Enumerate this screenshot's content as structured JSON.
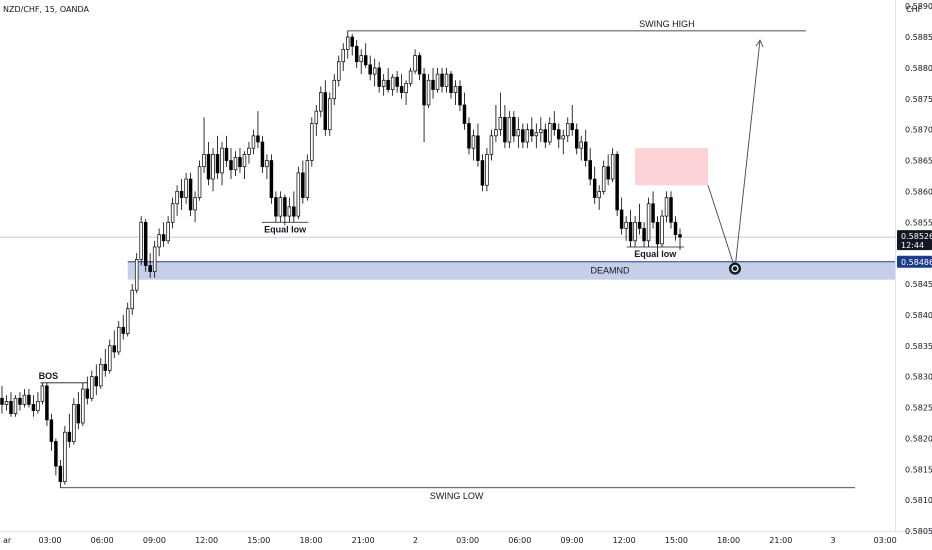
{
  "chart_data": {
    "type": "candlestick",
    "title": "NZD/CHF, 15, OANDA",
    "currency": "CHF",
    "ylim": [
      0.5805,
      0.5891
    ],
    "y_ticks": [
      "0.58900",
      "0.58850",
      "0.58800",
      "0.58750",
      "0.58700",
      "0.58650",
      "0.58600",
      "0.58550",
      "0.58450",
      "0.58400",
      "0.58350",
      "0.58300",
      "0.58250",
      "0.58200",
      "0.58150",
      "0.58100",
      "0.58050"
    ],
    "x_ticks": [
      "ar",
      "03:00",
      "06:00",
      "09:00",
      "12:00",
      "15:00",
      "18:00",
      "21:00",
      "2",
      "03:00",
      "06:00",
      "09:00",
      "12:00",
      "15:00",
      "18:00",
      "21:00",
      "3",
      "03:00"
    ],
    "last_price": "0.58526",
    "countdown": "12:44",
    "demand_level": "0.58486",
    "annotations": {
      "swing_high": "SWING HIGH",
      "swing_low": "SWING LOW",
      "bos": "BOS",
      "equal_low_1": "Equal low",
      "equal_low_2": "Equal low",
      "demand": "DEAMND"
    },
    "colors": {
      "bull": "#ffffff",
      "bear": "#000000",
      "outline": "#000000",
      "demand_zone": "#c5cfe8",
      "supply_zone": "#fcd2d6",
      "demand_line": "#1e3a8a",
      "price_label_bg": "#000000",
      "demand_label_bg": "#1e3a8a"
    },
    "candles": [
      [
        0.58265,
        0.58285,
        0.5824,
        0.58255
      ],
      [
        0.58255,
        0.5827,
        0.58245,
        0.5826
      ],
      [
        0.5826,
        0.58275,
        0.58235,
        0.5824
      ],
      [
        0.5824,
        0.5827,
        0.58235,
        0.58265
      ],
      [
        0.58265,
        0.58275,
        0.58245,
        0.58255
      ],
      [
        0.58255,
        0.5828,
        0.5825,
        0.5827
      ],
      [
        0.5827,
        0.5828,
        0.5825,
        0.58255
      ],
      [
        0.58255,
        0.5827,
        0.58235,
        0.58245
      ],
      [
        0.58245,
        0.58275,
        0.5824,
        0.5826
      ],
      [
        0.5826,
        0.5829,
        0.58255,
        0.58285
      ],
      [
        0.58285,
        0.5829,
        0.5822,
        0.5823
      ],
      [
        0.5823,
        0.5824,
        0.5818,
        0.58195
      ],
      [
        0.58195,
        0.582,
        0.5814,
        0.58155
      ],
      [
        0.58155,
        0.58165,
        0.5812,
        0.5813
      ],
      [
        0.5813,
        0.5822,
        0.58125,
        0.5821
      ],
      [
        0.5821,
        0.5824,
        0.58185,
        0.58195
      ],
      [
        0.58195,
        0.58265,
        0.5819,
        0.58255
      ],
      [
        0.58255,
        0.58275,
        0.58215,
        0.58225
      ],
      [
        0.58225,
        0.5829,
        0.5822,
        0.5828
      ],
      [
        0.5828,
        0.583,
        0.58255,
        0.58265
      ],
      [
        0.58265,
        0.5831,
        0.5826,
        0.583
      ],
      [
        0.583,
        0.5832,
        0.5827,
        0.58285
      ],
      [
        0.58285,
        0.5833,
        0.5828,
        0.5832
      ],
      [
        0.5832,
        0.58345,
        0.583,
        0.5831
      ],
      [
        0.5831,
        0.5836,
        0.58305,
        0.5835
      ],
      [
        0.5835,
        0.58375,
        0.5833,
        0.5834
      ],
      [
        0.5834,
        0.5839,
        0.58335,
        0.5838
      ],
      [
        0.5838,
        0.584,
        0.5836,
        0.5837
      ],
      [
        0.5837,
        0.5842,
        0.58365,
        0.5841
      ],
      [
        0.5841,
        0.5845,
        0.584,
        0.5844
      ],
      [
        0.5844,
        0.585,
        0.58435,
        0.5849
      ],
      [
        0.5849,
        0.5856,
        0.5848,
        0.5855
      ],
      [
        0.5855,
        0.58555,
        0.5847,
        0.5848
      ],
      [
        0.5848,
        0.585,
        0.5846,
        0.5847
      ],
      [
        0.5847,
        0.5852,
        0.5846,
        0.5851
      ],
      [
        0.5851,
        0.5854,
        0.58495,
        0.5853
      ],
      [
        0.5853,
        0.5855,
        0.5851,
        0.5852
      ],
      [
        0.5852,
        0.5856,
        0.58515,
        0.5855
      ],
      [
        0.5855,
        0.5859,
        0.5854,
        0.5858
      ],
      [
        0.5858,
        0.5861,
        0.5856,
        0.586
      ],
      [
        0.586,
        0.5862,
        0.5857,
        0.5859
      ],
      [
        0.5859,
        0.5863,
        0.5858,
        0.5862
      ],
      [
        0.5862,
        0.5863,
        0.5856,
        0.5857
      ],
      [
        0.5857,
        0.586,
        0.5855,
        0.5859
      ],
      [
        0.5859,
        0.5865,
        0.58585,
        0.5864
      ],
      [
        0.5864,
        0.5872,
        0.5863,
        0.5866
      ],
      [
        0.5866,
        0.5868,
        0.5861,
        0.5862
      ],
      [
        0.5862,
        0.5867,
        0.586,
        0.5866
      ],
      [
        0.5866,
        0.5869,
        0.5862,
        0.5863
      ],
      [
        0.5863,
        0.5868,
        0.5861,
        0.5867
      ],
      [
        0.5867,
        0.5869,
        0.5864,
        0.5865
      ],
      [
        0.5865,
        0.5867,
        0.5862,
        0.58635
      ],
      [
        0.58635,
        0.58665,
        0.58625,
        0.58655
      ],
      [
        0.58655,
        0.5867,
        0.5863,
        0.5864
      ],
      [
        0.5864,
        0.58665,
        0.5862,
        0.5866
      ],
      [
        0.5866,
        0.5868,
        0.58645,
        0.5867
      ],
      [
        0.5867,
        0.587,
        0.5866,
        0.5869
      ],
      [
        0.5869,
        0.5873,
        0.5867,
        0.5868
      ],
      [
        0.5868,
        0.5869,
        0.5863,
        0.5864
      ],
      [
        0.5864,
        0.5866,
        0.5862,
        0.5865
      ],
      [
        0.5865,
        0.5866,
        0.5858,
        0.5859
      ],
      [
        0.5859,
        0.586,
        0.5855,
        0.5856
      ],
      [
        0.5856,
        0.586,
        0.5855,
        0.5859
      ],
      [
        0.5859,
        0.58595,
        0.58545,
        0.5856
      ],
      [
        0.5856,
        0.5859,
        0.5855,
        0.58575
      ],
      [
        0.58575,
        0.586,
        0.5855,
        0.5856
      ],
      [
        0.5856,
        0.5864,
        0.58555,
        0.5863
      ],
      [
        0.5863,
        0.5865,
        0.5858,
        0.5859
      ],
      [
        0.5859,
        0.5866,
        0.58585,
        0.5865
      ],
      [
        0.5865,
        0.5872,
        0.5864,
        0.5871
      ],
      [
        0.5871,
        0.5874,
        0.5869,
        0.5873
      ],
      [
        0.5873,
        0.5877,
        0.5872,
        0.5876
      ],
      [
        0.5876,
        0.5878,
        0.5869,
        0.587
      ],
      [
        0.587,
        0.5876,
        0.5869,
        0.5875
      ],
      [
        0.5875,
        0.5879,
        0.5874,
        0.5878
      ],
      [
        0.5878,
        0.5882,
        0.5877,
        0.5881
      ],
      [
        0.5881,
        0.5884,
        0.58795,
        0.5883
      ],
      [
        0.5883,
        0.5886,
        0.58815,
        0.5885
      ],
      [
        0.5885,
        0.58855,
        0.5882,
        0.58835
      ],
      [
        0.58835,
        0.58845,
        0.588,
        0.5881
      ],
      [
        0.5881,
        0.5883,
        0.5879,
        0.5882
      ],
      [
        0.5882,
        0.5884,
        0.588,
        0.58805
      ],
      [
        0.58805,
        0.5882,
        0.5878,
        0.5879
      ],
      [
        0.5879,
        0.58815,
        0.5877,
        0.588
      ],
      [
        0.588,
        0.5881,
        0.5876,
        0.5877
      ],
      [
        0.5877,
        0.5879,
        0.58755,
        0.5878
      ],
      [
        0.5878,
        0.588,
        0.5876,
        0.58765
      ],
      [
        0.58765,
        0.5879,
        0.58755,
        0.58785
      ],
      [
        0.58785,
        0.58795,
        0.5876,
        0.5877
      ],
      [
        0.5877,
        0.5879,
        0.5875,
        0.5876
      ],
      [
        0.5876,
        0.5878,
        0.5874,
        0.58775
      ],
      [
        0.58775,
        0.588,
        0.5877,
        0.58795
      ],
      [
        0.58795,
        0.5883,
        0.5879,
        0.5882
      ],
      [
        0.5882,
        0.58825,
        0.5878,
        0.5879
      ],
      [
        0.5879,
        0.588,
        0.5868,
        0.5874
      ],
      [
        0.5874,
        0.5879,
        0.58735,
        0.5878
      ],
      [
        0.5878,
        0.588,
        0.5875,
        0.58765
      ],
      [
        0.58765,
        0.588,
        0.5876,
        0.5879
      ],
      [
        0.5879,
        0.588,
        0.5876,
        0.5877
      ],
      [
        0.5877,
        0.588,
        0.5876,
        0.5879
      ],
      [
        0.5879,
        0.58795,
        0.5875,
        0.5876
      ],
      [
        0.5876,
        0.5878,
        0.5874,
        0.5877
      ],
      [
        0.5877,
        0.5878,
        0.5873,
        0.5874
      ],
      [
        0.5874,
        0.5876,
        0.587,
        0.5871
      ],
      [
        0.5871,
        0.5872,
        0.5866,
        0.5867
      ],
      [
        0.5867,
        0.587,
        0.5865,
        0.5869
      ],
      [
        0.5869,
        0.5871,
        0.5864,
        0.5865
      ],
      [
        0.5865,
        0.5866,
        0.586,
        0.5861
      ],
      [
        0.5861,
        0.5867,
        0.586,
        0.5866
      ],
      [
        0.5866,
        0.587,
        0.5865,
        0.5869
      ],
      [
        0.5869,
        0.5874,
        0.5868,
        0.587
      ],
      [
        0.587,
        0.5876,
        0.5869,
        0.5872
      ],
      [
        0.5872,
        0.5874,
        0.5867,
        0.5868
      ],
      [
        0.5868,
        0.5873,
        0.5867,
        0.5872
      ],
      [
        0.5872,
        0.5873,
        0.5868,
        0.5869
      ],
      [
        0.5869,
        0.5872,
        0.5867,
        0.587
      ],
      [
        0.587,
        0.5871,
        0.5867,
        0.5868
      ],
      [
        0.5868,
        0.5871,
        0.5867,
        0.587
      ],
      [
        0.587,
        0.5872,
        0.5868,
        0.5869
      ],
      [
        0.5869,
        0.5871,
        0.5867,
        0.58695
      ],
      [
        0.58695,
        0.5872,
        0.5868,
        0.587
      ],
      [
        0.587,
        0.5871,
        0.5867,
        0.5868
      ],
      [
        0.5868,
        0.5872,
        0.58675,
        0.5871
      ],
      [
        0.5871,
        0.5873,
        0.5869,
        0.587
      ],
      [
        0.587,
        0.5871,
        0.5867,
        0.58685
      ],
      [
        0.58685,
        0.587,
        0.5866,
        0.5869
      ],
      [
        0.5869,
        0.5872,
        0.5868,
        0.5871
      ],
      [
        0.5871,
        0.5874,
        0.5869,
        0.587
      ],
      [
        0.587,
        0.5871,
        0.5866,
        0.5867
      ],
      [
        0.5867,
        0.5869,
        0.5865,
        0.5868
      ],
      [
        0.5868,
        0.587,
        0.5864,
        0.5865
      ],
      [
        0.5865,
        0.5867,
        0.5861,
        0.5862
      ],
      [
        0.5862,
        0.5864,
        0.5858,
        0.5859
      ],
      [
        0.5859,
        0.5861,
        0.5857,
        0.586
      ],
      [
        0.586,
        0.5865,
        0.58595,
        0.5864
      ],
      [
        0.5864,
        0.5866,
        0.5861,
        0.5862
      ],
      [
        0.5862,
        0.5867,
        0.58615,
        0.5866
      ],
      [
        0.5866,
        0.58665,
        0.5856,
        0.5857
      ],
      [
        0.5857,
        0.5859,
        0.5853,
        0.5854
      ],
      [
        0.5854,
        0.5856,
        0.5852,
        0.5855
      ],
      [
        0.5855,
        0.5857,
        0.5851,
        0.5852
      ],
      [
        0.5852,
        0.5856,
        0.5851,
        0.5855
      ],
      [
        0.5855,
        0.5858,
        0.5853,
        0.5854
      ],
      [
        0.5854,
        0.5855,
        0.5851,
        0.5852
      ],
      [
        0.5852,
        0.5859,
        0.5851,
        0.5858
      ],
      [
        0.5858,
        0.586,
        0.5854,
        0.5855
      ],
      [
        0.5855,
        0.5856,
        0.58505,
        0.58515
      ],
      [
        0.58515,
        0.5857,
        0.5851,
        0.5856
      ],
      [
        0.5856,
        0.586,
        0.5855,
        0.5859
      ],
      [
        0.5859,
        0.586,
        0.5854,
        0.5855
      ],
      [
        0.5855,
        0.5856,
        0.5852,
        0.5853
      ],
      [
        0.5853,
        0.5854,
        0.58505,
        0.58526
      ]
    ]
  }
}
